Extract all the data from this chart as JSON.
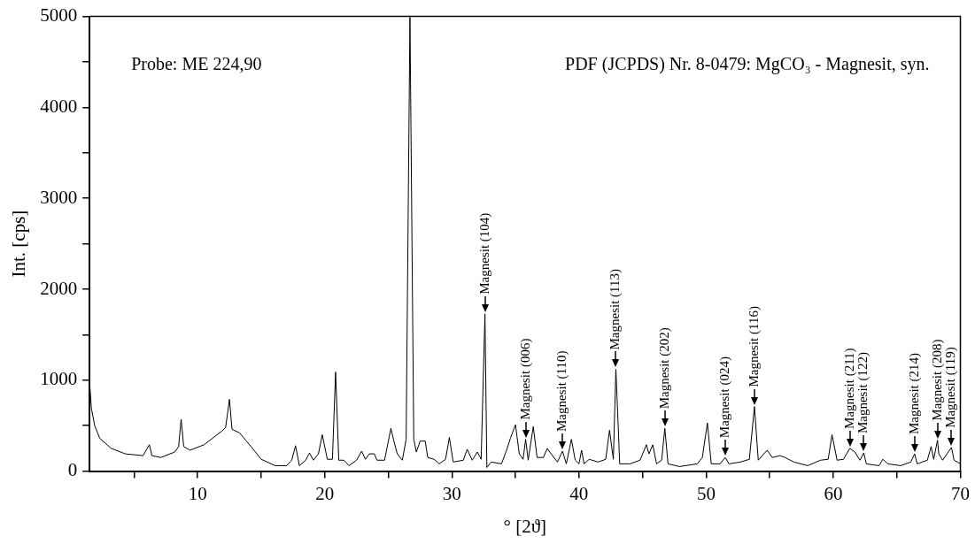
{
  "chart_data": {
    "type": "line",
    "xlabel": "° [2ϑ]",
    "ylabel": "Int. [cps]",
    "xlim": [
      1.5,
      70
    ],
    "ylim": [
      0,
      5000
    ],
    "xticks": [
      {
        "value": 5,
        "label": null
      },
      10,
      {
        "value": 15,
        "label": null
      },
      20,
      {
        "value": 25,
        "label": null
      },
      30,
      {
        "value": 35,
        "label": null
      },
      40,
      {
        "value": 45,
        "label": null
      },
      50,
      {
        "value": 55,
        "label": null
      },
      60,
      {
        "value": 65,
        "label": null
      },
      70
    ],
    "yticks": [
      0,
      {
        "value": 500,
        "label": null
      },
      1000,
      {
        "value": 1500,
        "label": null
      },
      2000,
      {
        "value": 2500,
        "label": null
      },
      3000,
      {
        "value": 3500,
        "label": null
      },
      4000,
      {
        "value": 4500,
        "label": null
      },
      5000
    ],
    "marker": "none",
    "line_style": "solid",
    "series": [
      {
        "color": "#000000",
        "x": [
          1.5,
          1.64,
          1.9,
          2.3,
          3.2,
          4.3,
          5.7,
          6.2,
          6.4,
          7.1,
          8.2,
          8.5,
          8.7,
          8.9,
          9.4,
          10.5,
          11.9,
          12.2,
          12.5,
          12.7,
          13.3,
          14.2,
          15.0,
          16.1,
          17.0,
          17.4,
          17.7,
          18.0,
          18.5,
          18.8,
          19.1,
          19.5,
          19.8,
          20.2,
          20.6,
          20.85,
          21.1,
          21.5,
          21.9,
          22.5,
          22.9,
          23.2,
          23.5,
          23.9,
          24.1,
          24.7,
          25.2,
          25.4,
          25.7,
          26.1,
          26.4,
          26.7,
          27.0,
          27.2,
          27.5,
          27.9,
          28.1,
          28.6,
          29.0,
          29.5,
          29.8,
          30.1,
          30.9,
          31.2,
          31.6,
          32.0,
          32.3,
          32.6,
          32.75,
          33.1,
          33.9,
          34.3,
          34.6,
          35.0,
          35.3,
          35.6,
          35.8,
          36.0,
          36.4,
          36.7,
          37.2,
          37.5,
          37.8,
          38.3,
          38.7,
          39.0,
          39.4,
          39.7,
          40.0,
          40.2,
          40.4,
          40.8,
          41.5,
          42.1,
          42.4,
          42.7,
          42.9,
          43.2,
          44.0,
          44.8,
          45.3,
          45.5,
          45.8,
          46.1,
          46.5,
          46.75,
          47.0,
          47.9,
          49.3,
          49.7,
          50.1,
          50.4,
          51.1,
          51.5,
          51.8,
          52.7,
          53.4,
          53.8,
          54.1,
          54.8,
          55.2,
          55.8,
          56.2,
          56.9,
          58.0,
          59.0,
          59.6,
          59.9,
          60.3,
          60.8,
          61.3,
          61.7,
          62.1,
          62.4,
          62.6,
          63.6,
          63.9,
          64.3,
          65.3,
          66.1,
          66.4,
          66.6,
          67.4,
          67.7,
          67.9,
          68.2,
          68.3,
          68.6,
          69.3,
          69.5,
          70.0
        ],
        "values": [
          980,
          690,
          500,
          360,
          250,
          190,
          170,
          290,
          170,
          150,
          210,
          270,
          570,
          270,
          230,
          290,
          440,
          480,
          790,
          460,
          420,
          270,
          130,
          60,
          60,
          120,
          280,
          60,
          120,
          200,
          120,
          190,
          400,
          130,
          130,
          1090,
          120,
          120,
          60,
          120,
          220,
          130,
          190,
          190,
          120,
          120,
          470,
          350,
          190,
          120,
          350,
          4990,
          350,
          210,
          330,
          330,
          150,
          130,
          80,
          130,
          370,
          100,
          120,
          240,
          120,
          210,
          130,
          1730,
          40,
          100,
          80,
          230,
          360,
          510,
          190,
          130,
          350,
          120,
          490,
          150,
          150,
          250,
          190,
          100,
          220,
          80,
          350,
          120,
          80,
          230,
          80,
          130,
          100,
          130,
          450,
          130,
          1120,
          80,
          80,
          120,
          290,
          190,
          290,
          80,
          120,
          470,
          80,
          50,
          80,
          150,
          530,
          80,
          80,
          150,
          80,
          100,
          130,
          710,
          120,
          230,
          150,
          170,
          150,
          100,
          60,
          120,
          130,
          400,
          120,
          130,
          250,
          210,
          120,
          200,
          80,
          60,
          130,
          80,
          60,
          100,
          190,
          80,
          120,
          270,
          130,
          340,
          190,
          120,
          260,
          120,
          80
        ]
      }
    ],
    "annotations": [
      "Probe: ME 224,90",
      "PDF (JCPDS) Nr. 8-0479: MgCO₃ - Magnesit, syn.",
      {
        "text": "Magnesit (104)",
        "x": 32.6,
        "y": 1730
      },
      {
        "text": "Magnesit (006)",
        "x": 35.8,
        "y": 350
      },
      {
        "text": "Magnesit (110)",
        "x": 38.7,
        "y": 220
      },
      {
        "text": "Magnesit (113)",
        "x": 42.9,
        "y": 1120
      },
      {
        "text": "Magnesit (202)",
        "x": 46.75,
        "y": 470
      },
      {
        "text": "Magnesit (024)",
        "x": 51.5,
        "y": 150
      },
      {
        "text": "Magnesit (116)",
        "x": 53.8,
        "y": 710
      },
      {
        "text": "Magnesit (211)",
        "x": 61.3,
        "y": 250
      },
      {
        "text": "Magnesit (122)",
        "x": 62.4,
        "y": 200
      },
      {
        "text": "Magnesit (214)",
        "x": 66.4,
        "y": 190
      },
      {
        "text": "Magnesit (208)",
        "x": 68.2,
        "y": 340
      },
      {
        "text": "Magnesit (119)",
        "x": 69.3,
        "y": 260
      }
    ]
  }
}
